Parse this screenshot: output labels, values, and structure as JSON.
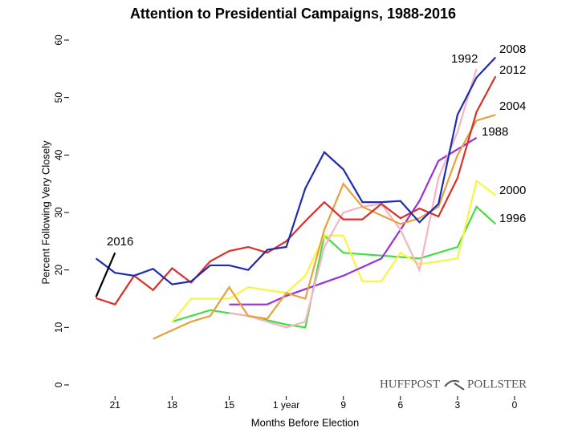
{
  "chart_data": {
    "type": "line",
    "title": "Attention to Presidential Campaigns, 1988-2016",
    "x_label": "Months Before Election",
    "y_label": "Percent Following Very Closely",
    "watermark": [
      "HUFFPOST",
      "POLLSTER"
    ],
    "xlim": [
      23,
      0
    ],
    "xticks": [
      21,
      18,
      15,
      {
        "value": 12,
        "label": "1 year"
      },
      9,
      6,
      3,
      0
    ],
    "ylim": [
      0,
      60
    ],
    "yticks": [
      0,
      10,
      20,
      30,
      40,
      50,
      60
    ],
    "series": [
      {
        "name": "1996",
        "color": "#44dd44",
        "x": [
          18,
          16,
          14,
          12,
          11,
          10,
          9,
          7,
          5,
          3,
          2,
          1
        ],
        "values": [
          11,
          13,
          12,
          10.5,
          10,
          26,
          23,
          22.5,
          22,
          24,
          31,
          28
        ]
      },
      {
        "name": "2000",
        "color": "#f5f542",
        "x": [
          18,
          17,
          16,
          15,
          14,
          13,
          12,
          11,
          10,
          9,
          8,
          7,
          6,
          5,
          4,
          3,
          2,
          1
        ],
        "values": [
          11,
          15,
          15,
          15,
          17,
          16.5,
          16,
          19,
          26,
          26,
          18,
          18,
          23,
          21,
          21.5,
          22,
          35.5,
          33
        ]
      },
      {
        "name": "1988",
        "color": "#9b30d9",
        "x": [
          15,
          13,
          12,
          9,
          7,
          5,
          4,
          3,
          2
        ],
        "values": [
          14,
          14,
          15.5,
          19,
          22,
          32,
          39,
          41,
          43
        ]
      },
      {
        "name": "1992",
        "color": "#f5b3c3",
        "x": [
          15,
          14,
          13,
          12,
          11,
          10,
          9,
          8,
          7,
          6,
          5,
          4,
          3,
          2
        ],
        "values": [
          12.5,
          12,
          11,
          10,
          11,
          24,
          30,
          31,
          31.5,
          27,
          20,
          36,
          44,
          55
        ]
      },
      {
        "name": "2004",
        "color": "#e8a13a",
        "x": [
          19,
          18,
          17,
          16,
          15,
          14,
          13,
          12,
          11,
          10,
          9,
          8,
          7,
          6,
          5,
          4,
          3,
          2,
          1
        ],
        "values": [
          8,
          9.5,
          11,
          12,
          17,
          12,
          11.5,
          16,
          15,
          27,
          35,
          31,
          29.5,
          28,
          29,
          31,
          40,
          46,
          47
        ]
      },
      {
        "name": "2012",
        "color": "#d9302a",
        "x": [
          22,
          21,
          20,
          19,
          18,
          17,
          16,
          15,
          14,
          13,
          12,
          11,
          10,
          9,
          8,
          7,
          6,
          5,
          4,
          3,
          2,
          1
        ],
        "values": [
          15.1,
          14,
          19,
          16.5,
          20.3,
          17.8,
          21.5,
          23.3,
          24,
          23,
          25,
          28.5,
          31.8,
          28.8,
          28.8,
          31.5,
          29,
          30.7,
          29.3,
          36,
          47.5,
          53.7
        ]
      },
      {
        "name": "2008",
        "color": "#1f2bb0",
        "x": [
          22,
          21,
          20,
          19,
          18,
          17,
          16,
          15,
          14,
          13,
          12,
          11,
          10,
          9,
          8,
          7,
          6,
          5,
          4,
          3,
          2,
          1
        ],
        "values": [
          22,
          19.5,
          19,
          20.2,
          17.5,
          18,
          20.8,
          20.8,
          20,
          23.5,
          24,
          34.2,
          40.5,
          37.5,
          31.8,
          31.8,
          32,
          28.3,
          31.5,
          47,
          53.5,
          57
        ]
      },
      {
        "name": "2016",
        "color": "#000000",
        "x": [
          22,
          21
        ],
        "values": [
          15.3,
          23
        ]
      }
    ]
  }
}
